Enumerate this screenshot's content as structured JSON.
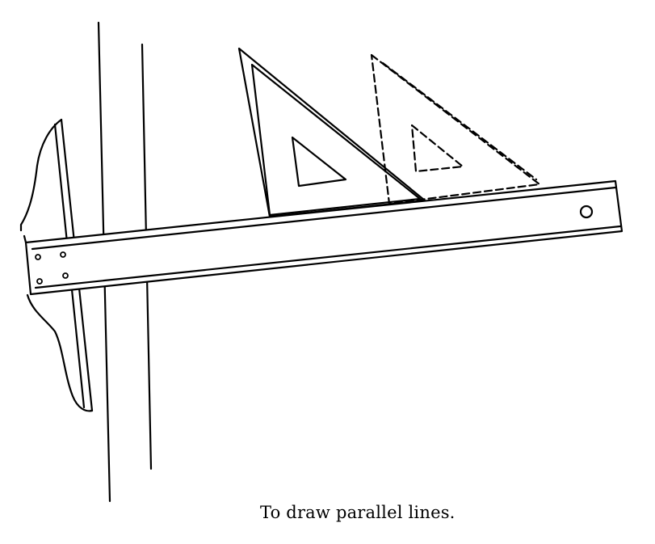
{
  "caption": "To draw parallel lines.",
  "colors": {
    "ink": "#000000",
    "paper": "#ffffff"
  }
}
